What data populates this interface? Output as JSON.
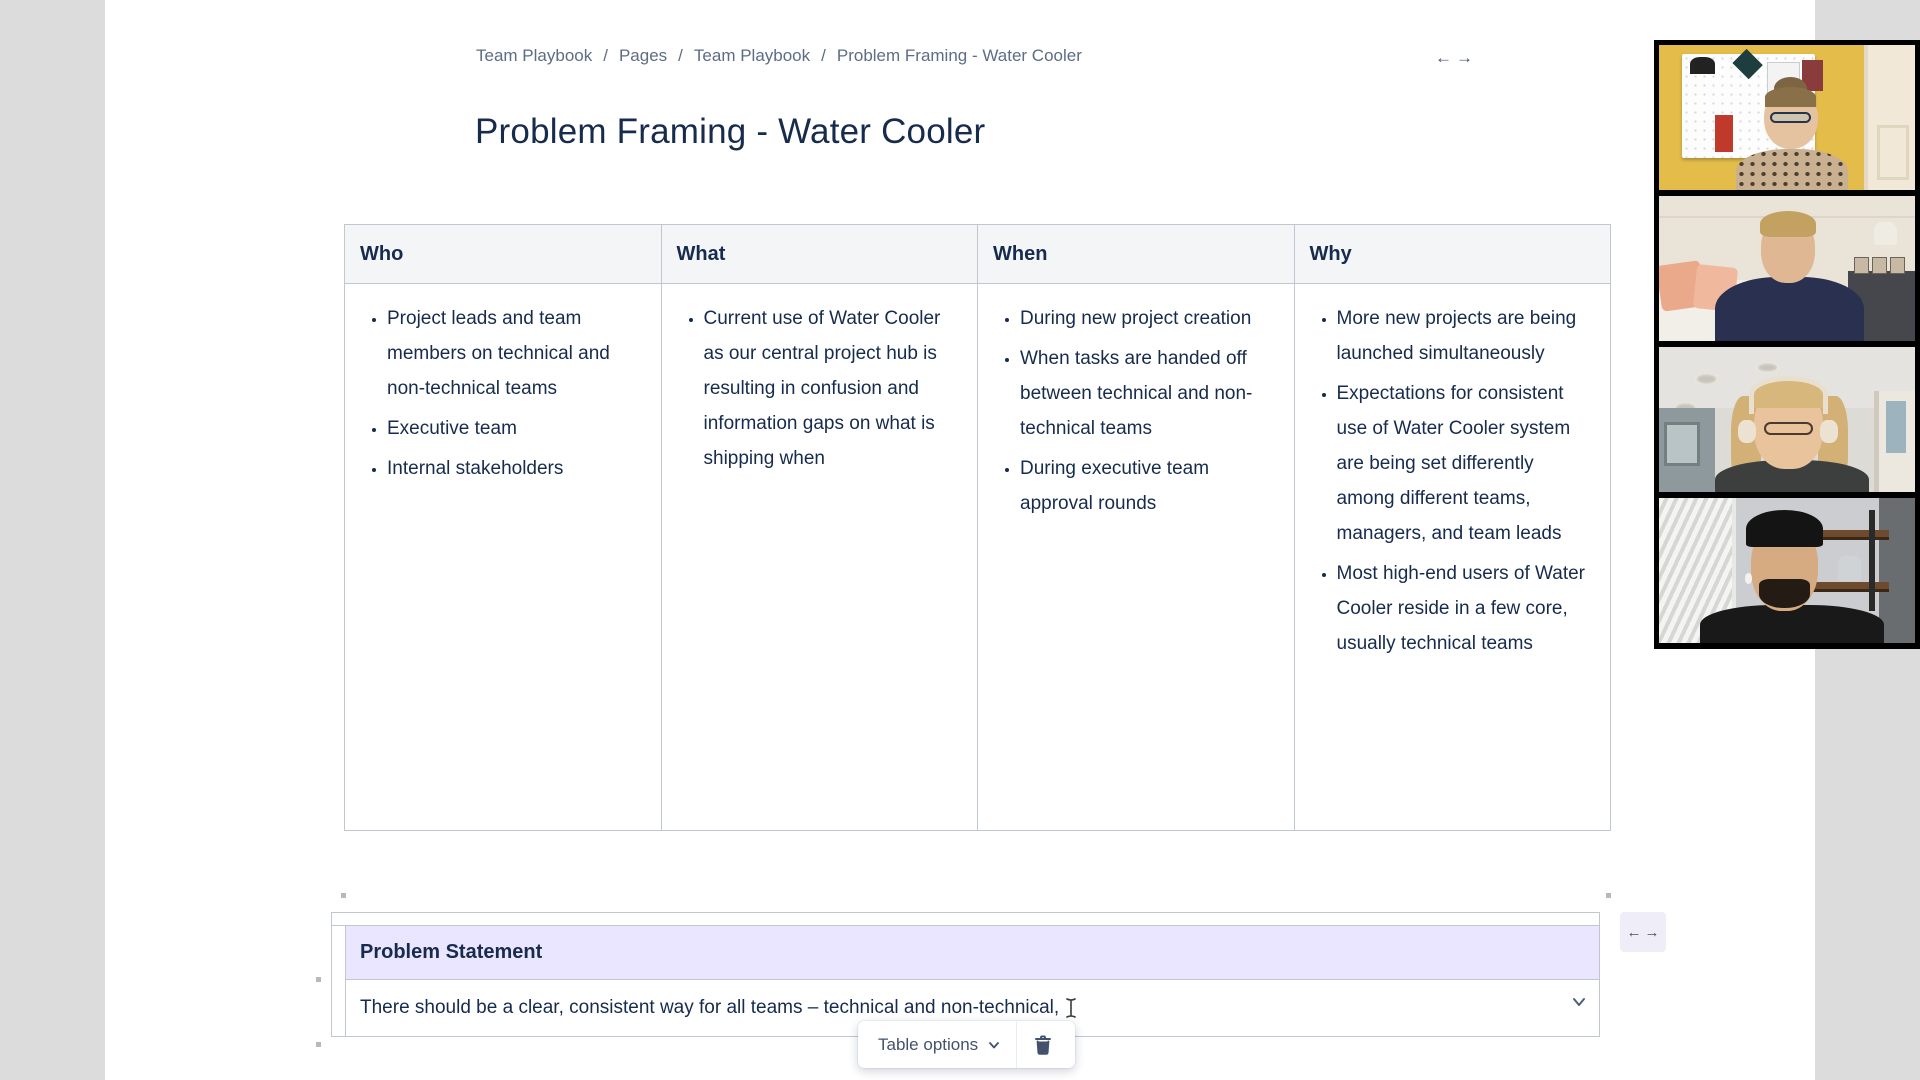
{
  "page": {
    "breadcrumb": [
      "Team Playbook",
      "Pages",
      "Team Playbook",
      "Problem Framing - Water Cooler"
    ],
    "breadcrumb_separator": "/",
    "title": "Problem Framing - Water Cooler"
  },
  "icons": {
    "arrow_left": "←",
    "arrow_right": "→"
  },
  "who_table": {
    "columns": [
      {
        "header": "Who",
        "items": [
          "Project leads and team members on technical and non-technical teams",
          "Executive team",
          "Internal stakeholders"
        ]
      },
      {
        "header": "What",
        "items": [
          "Current use of Water Cooler as our central project hub is resulting in confusion and information gaps on what is shipping when"
        ]
      },
      {
        "header": "When",
        "items": [
          "During new project creation",
          "When tasks are handed off between technical and non-technical teams",
          "During executive team approval rounds"
        ]
      },
      {
        "header": "Why",
        "items": [
          "More new projects are being launched simultaneously",
          "Expectations for consistent use of Water Cooler system are being set differently among different teams, managers, and team leads",
          "Most high-end users of Water Cooler reside in a few core, usually technical teams"
        ]
      }
    ]
  },
  "problem_statement": {
    "header": "Problem Statement",
    "text": "There should be a clear, consistent way for all teams – technical and non-technical,"
  },
  "toolbar": {
    "table_options_label": "Table options"
  },
  "video_call": {
    "participant_count": 4,
    "tiles": [
      {
        "id": "participant-1",
        "scene_color": "#e3bc49"
      },
      {
        "id": "participant-2",
        "scene_color": "#e9e3d8"
      },
      {
        "id": "participant-3",
        "scene_color": "#dcdbd6"
      },
      {
        "id": "participant-4",
        "scene_color": "#cccdd0"
      }
    ]
  },
  "colors": {
    "text_primary": "#172b4d",
    "breadcrumb_text": "#5e6c84",
    "table_border": "#c1c7d0",
    "table_header_bg": "#f4f5f7",
    "statement_header_bg": "#eae6ff",
    "side_strip": "#dcdcdc",
    "toolbar_icon": "#42526e"
  }
}
